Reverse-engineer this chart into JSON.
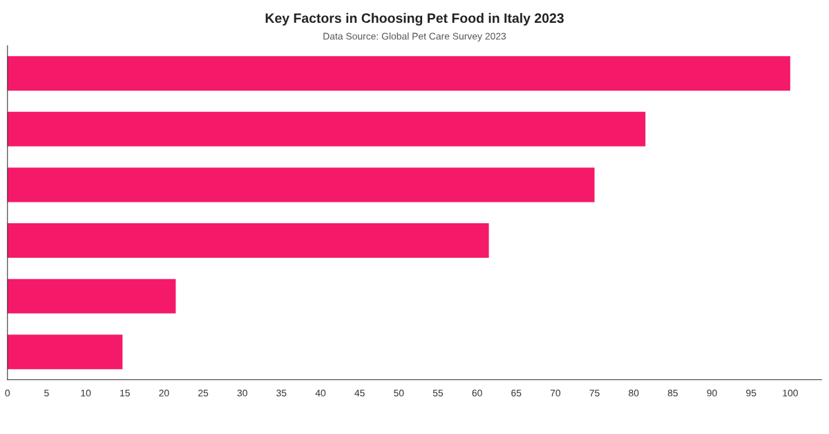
{
  "chart_data": {
    "type": "bar",
    "orientation": "horizontal",
    "title": "Key Factors in Choosing Pet Food in Italy 2023",
    "subtitle": "Data Source: Global Pet Care Survey 2023",
    "categories": [
      null,
      null,
      null,
      null,
      null,
      null
    ],
    "values": [
      100,
      81.5,
      75,
      61.5,
      21.5,
      14.7
    ],
    "color": "#f5196a",
    "xlim": [
      0,
      104
    ],
    "xticks": [
      0,
      5,
      10,
      15,
      20,
      25,
      30,
      35,
      40,
      45,
      50,
      55,
      60,
      65,
      70,
      75,
      80,
      85,
      90,
      95,
      100
    ],
    "grid": false
  }
}
